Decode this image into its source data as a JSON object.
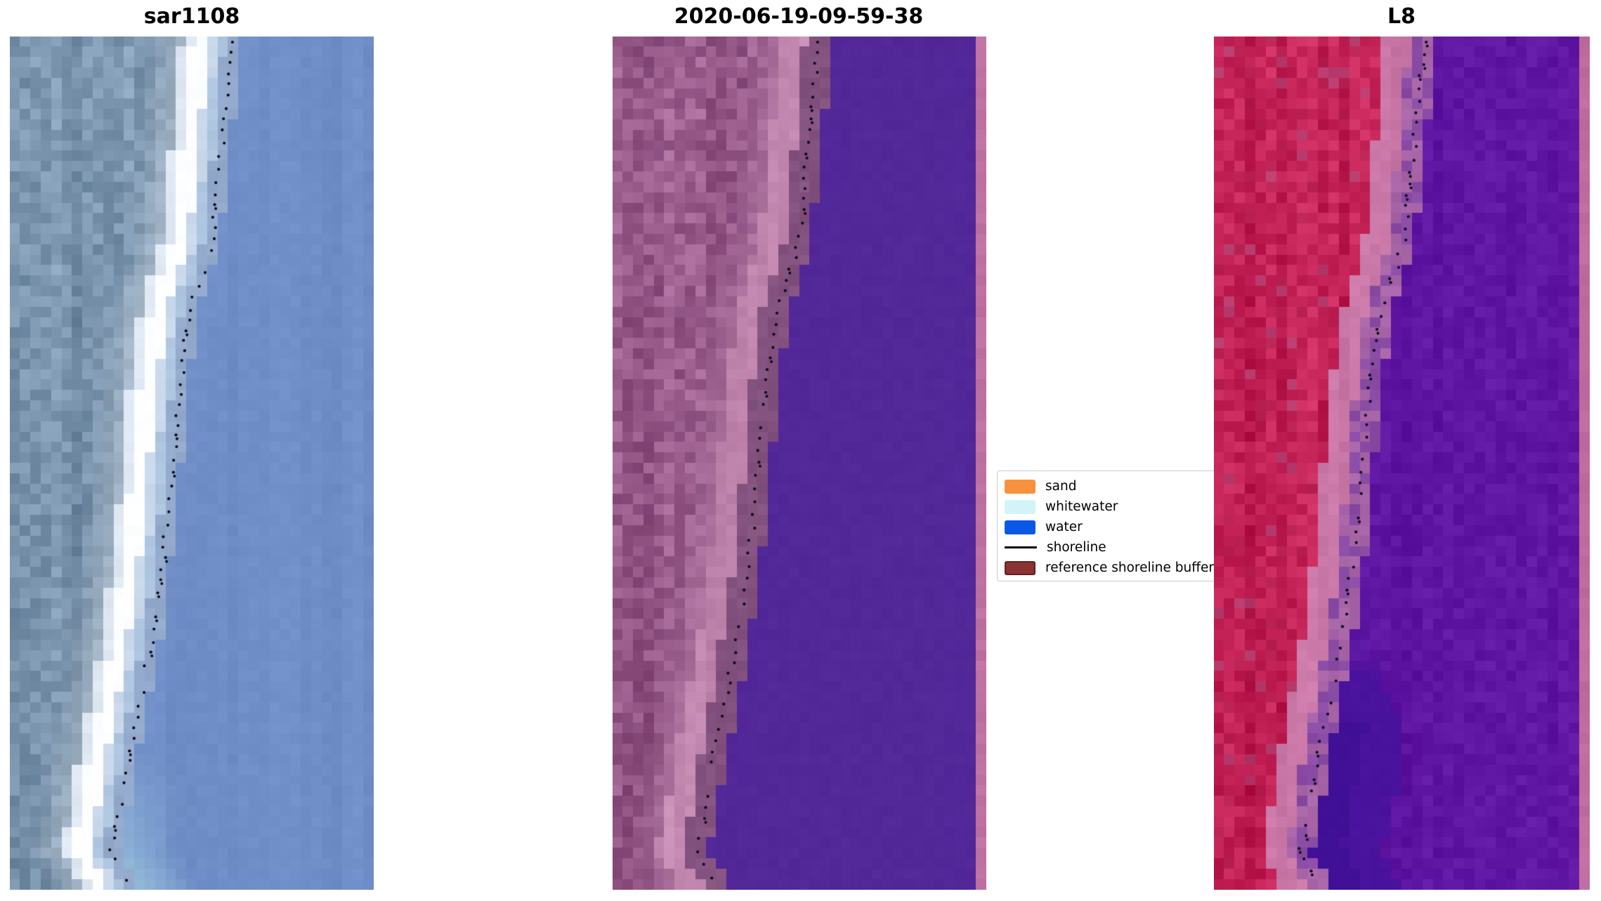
{
  "figure": {
    "background": "#ffffff",
    "panels": [
      {
        "id": "sar",
        "title": "sar1108",
        "type": "sar",
        "seed": 11,
        "cols": 35,
        "pathOffset": 0.0,
        "dotShift": 0.012,
        "colors": {
          "land": "#7E97B0",
          "landLight": "#C6D2DD",
          "landDark": "#64819C",
          "bandEdge": "#DFE8F2",
          "bandCore": "#FDFEFF",
          "bandBlue1": "#C9D8EB",
          "bandBlue2": "#AFC6E1",
          "preWater": "#93AACC",
          "water": "#6F8DC7",
          "cyanTint": "#9CC8DE"
        }
      },
      {
        "id": "classification",
        "title": "2020-06-19-09-59-38",
        "type": "class",
        "seed": 22,
        "cols": 36,
        "pathOffset": -0.033,
        "dotShift": -0.012,
        "colors": {
          "land": "#9D608F",
          "landLight": "#BB83AC",
          "landDark": "#7A4073",
          "band": "#C287AF",
          "bandLight": "#CF99BD",
          "strip": "#83527F",
          "water": "#522798",
          "edge": "#BF72A1"
        }
      },
      {
        "id": "l8",
        "title": "L8",
        "type": "l8",
        "seed": 33,
        "cols": 36,
        "pathOffset": -0.028,
        "dotShift": -0.01,
        "colors": {
          "land": "#C32257",
          "landLight": "#D8447A",
          "landDark": "#AD1C4B",
          "mauvePx": "#B14C7D",
          "band": "#C877A6",
          "trans1": "#A765A8",
          "trans2": "#8A4BA4",
          "water": "#5E15A1",
          "blob": "#46129D",
          "blobDark": "#3D0F94",
          "edge": "#BF6CA0"
        }
      }
    ],
    "legend": {
      "items": [
        {
          "label": "sand",
          "kind": "patch",
          "color": "#F7913D"
        },
        {
          "label": "whitewater",
          "kind": "patch",
          "color": "#D2F3F7"
        },
        {
          "label": "water",
          "kind": "patch",
          "color": "#0A58E4"
        },
        {
          "label": "shoreline",
          "kind": "line",
          "color": "#000000"
        },
        {
          "label": "reference shoreline buffer",
          "kind": "patch-edged",
          "color": "#8B3232"
        }
      ]
    },
    "shoreline_dot_color": "#0A0A16",
    "shoreline_path": [
      [
        0.0,
        0.6
      ],
      [
        0.04,
        0.59
      ],
      [
        0.08,
        0.582
      ],
      [
        0.12,
        0.573
      ],
      [
        0.16,
        0.562
      ],
      [
        0.2,
        0.553
      ],
      [
        0.24,
        0.542
      ],
      [
        0.27,
        0.525
      ],
      [
        0.3,
        0.498
      ],
      [
        0.33,
        0.48
      ],
      [
        0.36,
        0.47
      ],
      [
        0.4,
        0.458
      ],
      [
        0.44,
        0.448
      ],
      [
        0.48,
        0.44
      ],
      [
        0.52,
        0.431
      ],
      [
        0.56,
        0.422
      ],
      [
        0.6,
        0.413
      ],
      [
        0.64,
        0.4
      ],
      [
        0.68,
        0.388
      ],
      [
        0.72,
        0.372
      ],
      [
        0.76,
        0.354
      ],
      [
        0.8,
        0.336
      ],
      [
        0.84,
        0.318
      ],
      [
        0.87,
        0.306
      ],
      [
        0.9,
        0.296
      ],
      [
        0.93,
        0.28
      ],
      [
        0.955,
        0.268
      ],
      [
        0.975,
        0.295
      ],
      [
        1.0,
        0.33
      ]
    ]
  },
  "chart_data": {
    "type": "heatmap",
    "subtype": "satellite-image-panels",
    "panels": [
      {
        "title": "sar1108",
        "content": "SAR backscatter image, grey-blue land left, bright white surf band, uniform blue water right, black dotted detected shoreline"
      },
      {
        "title": "2020-06-19-09-59-38",
        "content": "classified image with reference buffer overlay: mauve sand, pink whitewater band, flat dark-purple water, pink strip at right edge, black dotted shoreline"
      },
      {
        "title": "L8",
        "content": "Landsat-8 false-colour image: crimson land, pink surf band, purple water with darker deep patch lower-centre, pink strip at right edge, black dotted shoreline"
      }
    ],
    "legend_entries": [
      "sand",
      "whitewater",
      "water",
      "shoreline",
      "reference shoreline buffer"
    ],
    "legend_colors": [
      "#F7913D",
      "#D2F3F7",
      "#0A58E4",
      "#000000",
      "#8B3232"
    ],
    "axes": "none (images shown without ticks, grid off)",
    "shoreline_path_normalized": [
      [
        0.0,
        0.6
      ],
      [
        0.04,
        0.59
      ],
      [
        0.08,
        0.582
      ],
      [
        0.12,
        0.573
      ],
      [
        0.16,
        0.562
      ],
      [
        0.2,
        0.553
      ],
      [
        0.24,
        0.542
      ],
      [
        0.27,
        0.525
      ],
      [
        0.3,
        0.498
      ],
      [
        0.33,
        0.48
      ],
      [
        0.36,
        0.47
      ],
      [
        0.4,
        0.458
      ],
      [
        0.44,
        0.448
      ],
      [
        0.48,
        0.44
      ],
      [
        0.52,
        0.431
      ],
      [
        0.56,
        0.422
      ],
      [
        0.6,
        0.413
      ],
      [
        0.64,
        0.4
      ],
      [
        0.68,
        0.388
      ],
      [
        0.72,
        0.372
      ],
      [
        0.76,
        0.354
      ],
      [
        0.8,
        0.336
      ],
      [
        0.84,
        0.318
      ],
      [
        0.87,
        0.306
      ],
      [
        0.9,
        0.296
      ],
      [
        0.93,
        0.28
      ],
      [
        0.955,
        0.268
      ],
      [
        0.975,
        0.295
      ],
      [
        1.0,
        0.33
      ]
    ]
  }
}
